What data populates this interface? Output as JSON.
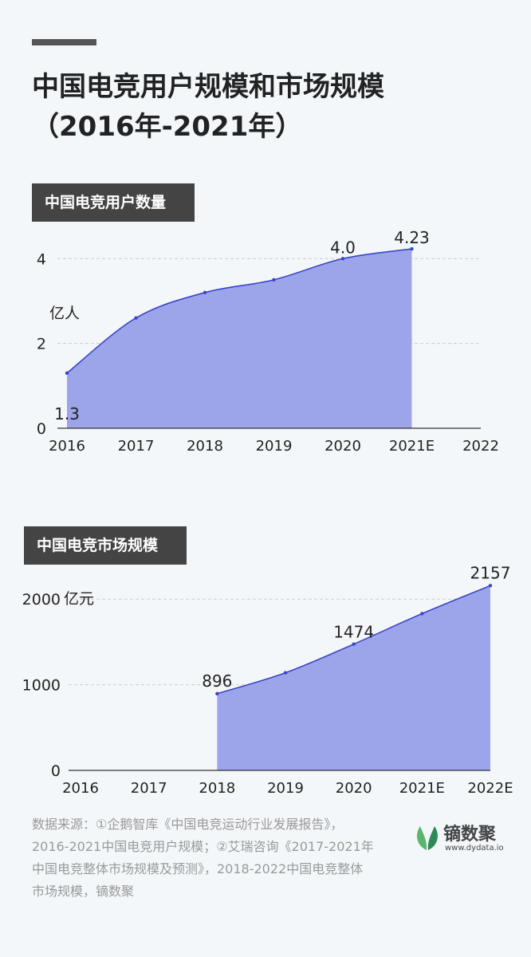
{
  "page": {
    "title_line1": "中国电竞用户规模和市场规模",
    "title_line2": "（2016年-2021年）",
    "footer": "数据来源：①企鹅智库《中国电竞运动行业发展报告》，2016-2021中国电竞用户规模；②艾瑞咨询《2017-2021年中国电竞整体市场规模及预测》，2018-2022中国电竞整体市场规模，镝数聚",
    "logo_text": "镝数聚",
    "logo_url": "www.dydata.io"
  },
  "colors": {
    "fill": "#9da5ea",
    "line": "#3a46c8",
    "text": "#222222",
    "grid": "#cccccc",
    "label_bg": "#444444"
  },
  "chart_data": [
    {
      "type": "area",
      "title": "中国电竞用户数量",
      "ylabel": "亿人",
      "x": [
        "2016",
        "2017",
        "2018",
        "2019",
        "2020",
        "2021E",
        "2022"
      ],
      "y_ticks": [
        "0",
        "2",
        "4"
      ],
      "ylim": [
        0,
        4.4
      ],
      "grid": true,
      "series": [
        {
          "values": [
            1.3,
            2.6,
            3.2,
            3.5,
            4.0,
            4.23,
            null
          ]
        }
      ],
      "data_labels": [
        {
          "index": 0,
          "text": "1.3"
        },
        {
          "index": 4,
          "text": "4.0"
        },
        {
          "index": 5,
          "text": "4.23"
        }
      ]
    },
    {
      "type": "area",
      "title": "中国电竞市场规模",
      "ylabel": "亿元",
      "x": [
        "2016",
        "2017",
        "2018",
        "2019",
        "2020",
        "2021E",
        "2022E"
      ],
      "y_ticks": [
        "0",
        "1000",
        "2000"
      ],
      "ylim": [
        0,
        2300
      ],
      "grid": true,
      "series": [
        {
          "values": [
            null,
            null,
            896,
            1140,
            1474,
            1830,
            2157
          ]
        }
      ],
      "data_labels": [
        {
          "index": 2,
          "text": "896"
        },
        {
          "index": 4,
          "text": "1474"
        },
        {
          "index": 6,
          "text": "2157"
        }
      ]
    }
  ]
}
